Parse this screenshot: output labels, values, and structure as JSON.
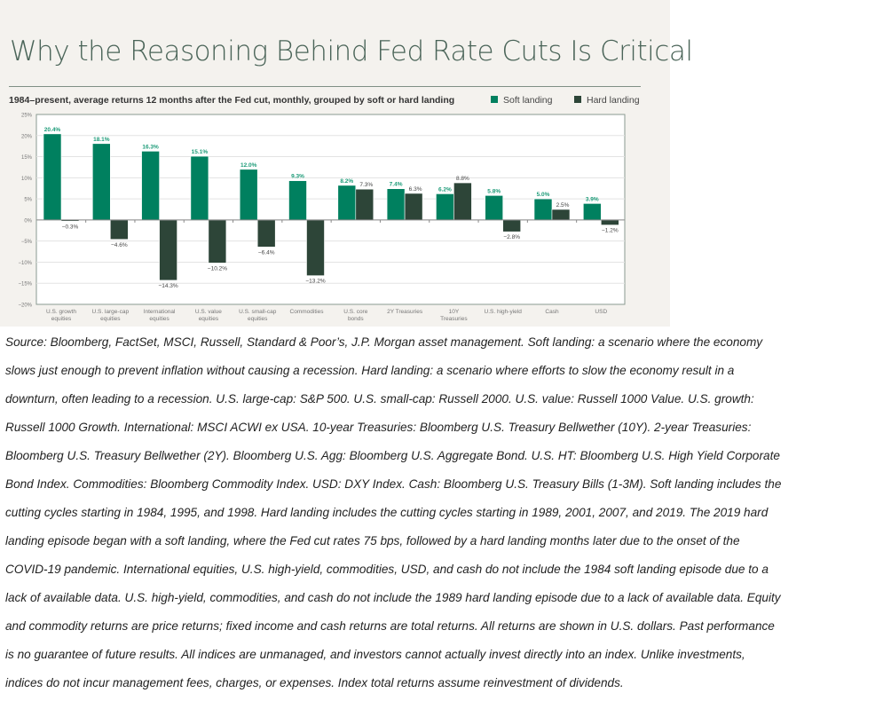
{
  "chart_data": {
    "type": "bar",
    "title": "Why the Reasoning Behind Fed Rate Cuts Is Critical",
    "subtitle": "1984–present, average returns 12 months after the Fed cut, monthly, grouped by soft or hard landing",
    "categories": [
      [
        "U.S. growth",
        "equities"
      ],
      [
        "U.S. large-cap",
        "equities"
      ],
      [
        "International",
        "equities"
      ],
      [
        "U.S. value",
        "equities"
      ],
      [
        "U.S. small-cap",
        "equities"
      ],
      [
        "Commodities"
      ],
      [
        "U.S. core",
        "bonds"
      ],
      [
        "2Y Treasuries"
      ],
      [
        "10Y",
        "Treasuries"
      ],
      [
        "U.S. high-yield"
      ],
      [
        "Cash"
      ],
      [
        "USD"
      ]
    ],
    "series": [
      {
        "name": "Soft landing",
        "color": "#00805f",
        "label_color": "#1c9b78",
        "values": [
          20.4,
          18.1,
          16.3,
          15.1,
          12.0,
          9.3,
          8.2,
          7.4,
          6.2,
          5.8,
          5.0,
          3.9
        ]
      },
      {
        "name": "Hard landing",
        "color": "#2d4538",
        "label_color": "#444444",
        "values": [
          -0.3,
          -4.6,
          -14.3,
          -10.2,
          -6.4,
          -13.2,
          7.3,
          6.3,
          8.8,
          -2.8,
          2.5,
          -1.2
        ]
      }
    ],
    "data_labels": [
      [
        "20.4%",
        "18.1%",
        "16.3%",
        "15.1%",
        "12.0%",
        "9.3%",
        "8.2%",
        "7.4%",
        "6.2%",
        "5.8%",
        "5.0%",
        "3.9%"
      ],
      [
        "−0.3%",
        "−4.6%",
        "−14.3%",
        "−10.2%",
        "−6.4%",
        "−13.2%",
        "7.3%",
        "6.3%",
        "8.8%",
        "−2.8%",
        "2.5%",
        "−1.2%"
      ]
    ],
    "yticks": [
      "25%",
      "20%",
      "15%",
      "10%",
      "5%",
      "0%",
      "−5%",
      "−10%",
      "−15%",
      "−20%"
    ],
    "ytick_values": [
      25,
      20,
      15,
      10,
      5,
      0,
      -5,
      -10,
      -15,
      -20
    ],
    "ylim": [
      -20,
      25
    ],
    "grid": true,
    "legend": "top-right"
  },
  "caption_lines": [
    "Source: Bloomberg, FactSet, MSCI, Russell, Standard & Poor’s, J.P. Morgan asset management. Soft landing: a scenario where the economy",
    "slows just enough to prevent inflation without causing a recession. Hard landing: a scenario where efforts to slow the economy result in a",
    "downturn, often leading to a recession. U.S. large-cap: S&P 500. U.S. small-cap: Russell 2000. U.S. value: Russell 1000 Value. U.S. growth:",
    "Russell 1000 Growth. International: MSCI ACWI ex USA. 10-year Treasuries: Bloomberg U.S. Treasury Bellwether (10Y). 2-year Treasuries:",
    "Bloomberg U.S. Treasury Bellwether (2Y). Bloomberg U.S. Agg: Bloomberg U.S. Aggregate Bond. U.S. HT: Bloomberg U.S. High Yield Corporate",
    "Bond Index. Commodities: Bloomberg Commodity Index. USD: DXY Index. Cash: Bloomberg U.S. Treasury Bills (1-3M). Soft landing includes the",
    "cutting cycles starting in 1984, 1995, and 1998. Hard landing includes the cutting cycles starting in 1989, 2001, 2007, and 2019. The 2019 hard",
    "landing episode began with a soft landing, where the Fed cut rates 75 bps, followed by a hard landing months later due to the onset of the",
    "COVID-19 pandemic. International equities, U.S. high-yield, commodities, USD, and cash do not include the 1984 soft landing episode due to a",
    "lack of available data. U.S. high-yield, commodities, and cash do not include the 1989 hard landing episode due to a lack of available data. Equity",
    "and commodity returns are price returns; fixed income and cash returns are total returns. All returns are shown in U.S. dollars. Past performance",
    "is no guarantee of future results. All indices are unmanaged, and investors cannot actually invest directly into an index. Unlike investments,",
    "indices do not incur management fees, charges, or expenses. Index total returns assume reinvestment of dividends."
  ]
}
